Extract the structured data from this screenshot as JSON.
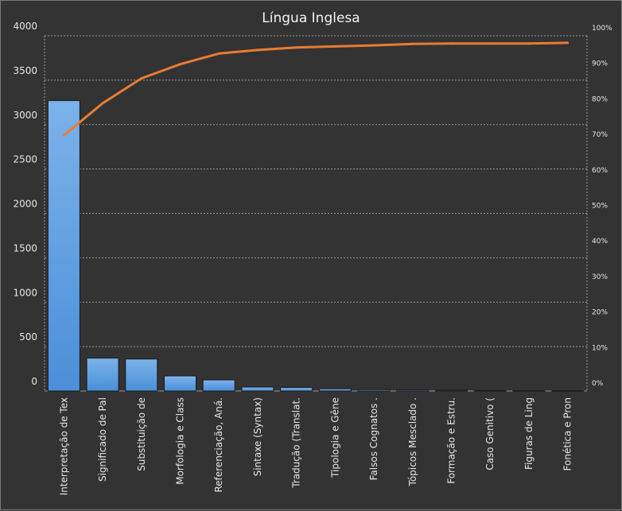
{
  "chart_data": {
    "type": "bar",
    "title": "Língua Inglesa",
    "categories": [
      "Interpretação de Tex",
      "Significado de Pal",
      "Substituição de",
      "Morfologia e Class",
      "Referenciação, Aná.",
      "Sintaxe (Syntax)",
      "Tradução (Translat.",
      "Tipologia e Gêne",
      "Falsos Cognatos .",
      "Tópicos Mesclado .",
      "Formação e Estru.",
      "Caso Genitivo (",
      "Figuras de Ling",
      "Fonética e Pron"
    ],
    "series": [
      {
        "type": "bar",
        "values": [
          3270,
          370,
          360,
          170,
          125,
          45,
          40,
          25,
          15,
          12,
          10,
          5,
          3,
          2
        ]
      },
      {
        "type": "line",
        "axis": "secondary",
        "values": [
          72,
          81,
          88,
          92,
          95,
          96,
          96.7,
          97,
          97.3,
          97.7,
          97.8,
          97.8,
          97.8,
          98
        ]
      }
    ],
    "ylim": [
      0,
      4000
    ],
    "yticks": [
      "0",
      "500",
      "1000",
      "1500",
      "2000",
      "2500",
      "3000",
      "3500",
      "4000"
    ],
    "y2lim": [
      0,
      100
    ],
    "y2ticks": [
      "0%",
      "10%",
      "20%",
      "30%",
      "40%",
      "50%",
      "60%",
      "70%",
      "80%",
      "90%",
      "100%"
    ],
    "grid": true,
    "legend": "none",
    "colors": {
      "background": "#333333",
      "bar_fill": "#4a8fd9",
      "bar_highlight": "#7cb2ea",
      "bar_stroke": "#1a1a1a",
      "line": "#e87c33",
      "grid": "#9a9a9a",
      "text": "#e6e6e6"
    }
  }
}
